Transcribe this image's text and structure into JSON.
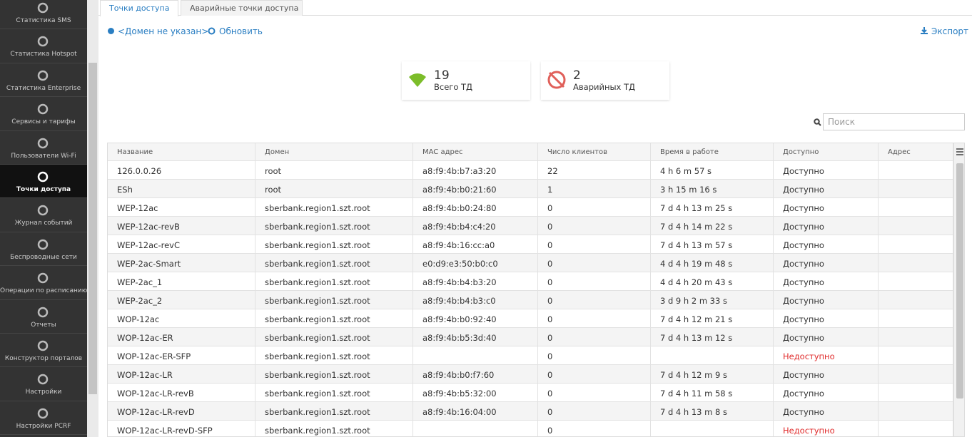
{
  "sidebar": {
    "items": [
      {
        "label": "Статистика SMS"
      },
      {
        "label": "Статистика Hotspot"
      },
      {
        "label": "Статистика Enterprise"
      },
      {
        "label": "Сервисы и тарифы"
      },
      {
        "label": "Пользователи Wi-Fi"
      },
      {
        "label": "Точки доступа",
        "active": true
      },
      {
        "label": "Журнал событий"
      },
      {
        "label": "Беспроводные сети"
      },
      {
        "label": "Операции по расписанию"
      },
      {
        "label": "Отчеты"
      },
      {
        "label": "Конструктор порталов"
      },
      {
        "label": "Настройки"
      },
      {
        "label": "Настройки PCRF"
      }
    ]
  },
  "tabs": [
    {
      "label": "Точки доступа",
      "active": true
    },
    {
      "label": "Аварийные точки доступа"
    }
  ],
  "toolbar": {
    "domain": "<Домен не указан>",
    "refresh": "Обновить",
    "export": "Экспорт"
  },
  "stats": [
    {
      "value": "19",
      "label": "Всего ТД",
      "color": "#7cbd2a"
    },
    {
      "value": "2",
      "label": "Аварийных ТД",
      "color": "#e0605a"
    }
  ],
  "search": {
    "placeholder": "Поиск"
  },
  "table": {
    "columns": [
      "Название",
      "Домен",
      "MAC адрес",
      "Число клиентов",
      "Время в работе",
      "Доступно",
      "Адрес"
    ],
    "rows": [
      {
        "cells": [
          "126.0.0.26",
          "root",
          "a8:f9:4b:b7:a3:20",
          "22",
          "4 h 6 m 57 s",
          "Доступно"
        ]
      },
      {
        "cells": [
          "ESh",
          "root",
          "a8:f9:4b:b0:21:60",
          "1",
          "3 h 15 m 16 s",
          "Доступно"
        ]
      },
      {
        "cells": [
          "WEP-12ac",
          "sberbank.region1.szt.root",
          "a8:f9:4b:b0:24:80",
          "0",
          "7 d 4 h 13 m 25 s",
          "Доступно"
        ]
      },
      {
        "cells": [
          "WEP-12ac-revB",
          "sberbank.region1.szt.root",
          "a8:f9:4b:b4:c4:20",
          "0",
          "7 d 4 h 14 m 22 s",
          "Доступно"
        ]
      },
      {
        "cells": [
          "WEP-12ac-revC",
          "sberbank.region1.szt.root",
          "a8:f9:4b:16:cc:a0",
          "0",
          "7 d 4 h 13 m 57 s",
          "Доступно"
        ]
      },
      {
        "cells": [
          "WEP-2ac-Smart",
          "sberbank.region1.szt.root",
          "e0:d9:e3:50:b0:c0",
          "0",
          "4 d 4 h 19 m 48 s",
          "Доступно"
        ]
      },
      {
        "cells": [
          "WEP-2ac_1",
          "sberbank.region1.szt.root",
          "a8:f9:4b:b4:b3:20",
          "0",
          "4 d 4 h 20 m 43 s",
          "Доступно"
        ]
      },
      {
        "cells": [
          "WEP-2ac_2",
          "sberbank.region1.szt.root",
          "a8:f9:4b:b4:b3:c0",
          "0",
          "3 d 9 h 2 m 33 s",
          "Доступно"
        ]
      },
      {
        "cells": [
          "WOP-12ac",
          "sberbank.region1.szt.root",
          "a8:f9:4b:b0:92:40",
          "0",
          "7 d 4 h 12 m 21 s",
          "Доступно"
        ]
      },
      {
        "cells": [
          "WOP-12ac-ER",
          "sberbank.region1.szt.root",
          "a8:f9:4b:b5:3d:40",
          "0",
          "7 d 4 h 13 m 12 s",
          "Доступно"
        ]
      },
      {
        "cells": [
          "WOP-12ac-ER-SFP",
          "sberbank.region1.szt.root",
          null,
          "0",
          null,
          "Недоступно"
        ],
        "status_color": "#e02b2b"
      },
      {
        "cells": [
          "WOP-12ac-LR",
          "sberbank.region1.szt.root",
          "a8:f9:4b:b0:f7:60",
          "0",
          "7 d 4 h 12 m 9 s",
          "Доступно"
        ]
      },
      {
        "cells": [
          "WOP-12ac-LR-revB",
          "sberbank.region1.szt.root",
          "a8:f9:4b:b5:32:00",
          "0",
          "7 d 4 h 11 m 58 s",
          "Доступно"
        ]
      },
      {
        "cells": [
          "WOP-12ac-LR-revD",
          "sberbank.region1.szt.root",
          "a8:f9:4b:16:04:00",
          "0",
          "7 d 4 h 13 m 8 s",
          "Доступно"
        ]
      },
      {
        "cells": [
          "WOP-12ac-LR-revD-SFP",
          "sberbank.region1.szt.root",
          null,
          "0",
          null,
          "Недоступно"
        ],
        "status_color": "#e02b2b"
      }
    ]
  }
}
